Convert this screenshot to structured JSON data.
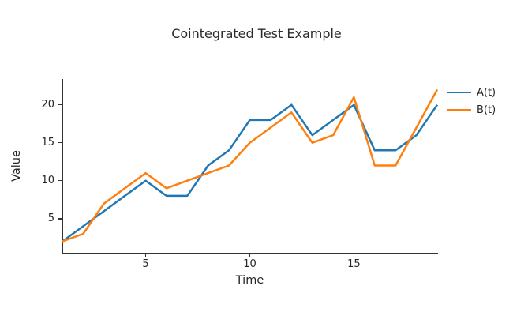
{
  "chart": {
    "title": "Cointegrated Test Example"
  },
  "chart_data": {
    "type": "line",
    "title": "Cointegrated Test Example",
    "xlabel": "Time",
    "ylabel": "Value",
    "x": [
      1,
      2,
      3,
      4,
      5,
      6,
      7,
      8,
      9,
      10,
      11,
      12,
      13,
      14,
      15,
      16,
      17,
      18,
      19
    ],
    "series": [
      {
        "name": "A(t)",
        "color": "#1f77b4",
        "values": [
          2,
          4,
          6,
          8,
          10,
          8,
          8,
          12,
          14,
          18,
          18,
          20,
          16,
          18,
          20,
          14,
          14,
          16,
          20
        ]
      },
      {
        "name": "B(t)",
        "color": "#ff7f0e",
        "values": [
          2,
          3,
          7,
          9,
          11,
          9,
          10,
          11,
          12,
          15,
          17,
          19,
          15,
          16,
          21,
          12,
          12,
          17,
          22
        ]
      }
    ],
    "xlim": [
      1,
      19
    ],
    "ylim": [
      0.5,
      23.4
    ],
    "xticks": [
      5,
      10,
      15
    ],
    "yticks": [
      5,
      10,
      15,
      20
    ],
    "grid": false,
    "legend_position": "outside-top-right"
  }
}
